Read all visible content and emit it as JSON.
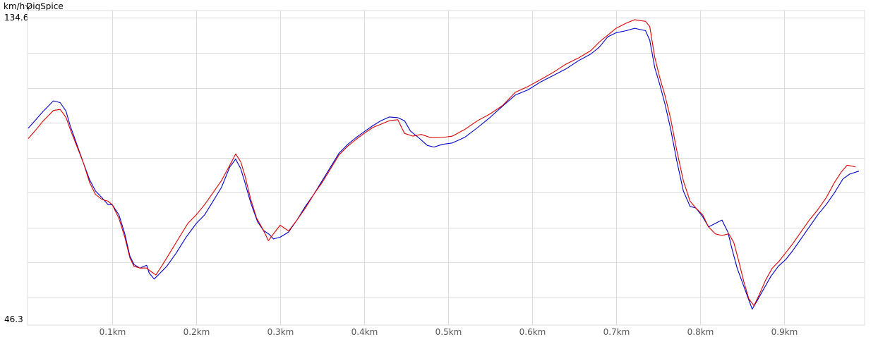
{
  "header": {
    "unit": "km/h",
    "brand": "DigSpice"
  },
  "chart_data": {
    "type": "line",
    "xlabel": "",
    "ylabel": "km/h",
    "xlim": [
      0,
      0.99
    ],
    "ylim": [
      46.3,
      134.6
    ],
    "y_ticks_labeled": [
      "134.6",
      "46.3"
    ],
    "x_ticks": [
      0.1,
      0.2,
      0.3,
      0.4,
      0.5,
      0.6,
      0.7,
      0.8,
      0.9
    ],
    "x_tick_labels": [
      "0.1km",
      "0.2km",
      "0.3km",
      "0.4km",
      "0.5km",
      "0.6km",
      "0.7km",
      "0.8km",
      "0.9km"
    ],
    "y_grid": [
      124.3,
      114.1,
      103.9,
      93.7,
      83.5,
      73.3,
      63.1,
      52.9
    ],
    "grid": true,
    "colors": {
      "series_blue": "#0000cc",
      "series_red": "#dd0000",
      "grid": "#dcdcdc",
      "tick_label": "#555555"
    },
    "series": [
      {
        "color": "#0000cc",
        "points": [
          [
            0.0,
            102.3
          ],
          [
            0.008,
            104.5
          ],
          [
            0.018,
            107.3
          ],
          [
            0.03,
            110.3
          ],
          [
            0.038,
            109.8
          ],
          [
            0.045,
            107.3
          ],
          [
            0.05,
            103.0
          ],
          [
            0.058,
            97.5
          ],
          [
            0.066,
            92.0
          ],
          [
            0.073,
            87.3
          ],
          [
            0.08,
            84.0
          ],
          [
            0.088,
            82.0
          ],
          [
            0.095,
            80.0
          ],
          [
            0.1,
            80.0
          ],
          [
            0.108,
            77.0
          ],
          [
            0.115,
            71.5
          ],
          [
            0.121,
            65.0
          ],
          [
            0.126,
            62.5
          ],
          [
            0.133,
            61.5
          ],
          [
            0.141,
            62.3
          ],
          [
            0.144,
            60.0
          ],
          [
            0.15,
            58.3
          ],
          [
            0.155,
            59.5
          ],
          [
            0.165,
            62.0
          ],
          [
            0.176,
            65.8
          ],
          [
            0.188,
            70.5
          ],
          [
            0.2,
            74.5
          ],
          [
            0.21,
            77.0
          ],
          [
            0.22,
            81.0
          ],
          [
            0.23,
            85.0
          ],
          [
            0.24,
            91.0
          ],
          [
            0.247,
            93.3
          ],
          [
            0.253,
            90.5
          ],
          [
            0.258,
            86.5
          ],
          [
            0.265,
            80.5
          ],
          [
            0.273,
            75.0
          ],
          [
            0.28,
            72.5
          ],
          [
            0.287,
            71.3
          ],
          [
            0.292,
            70.0
          ],
          [
            0.3,
            70.5
          ],
          [
            0.31,
            72.0
          ],
          [
            0.32,
            75.5
          ],
          [
            0.33,
            79.5
          ],
          [
            0.34,
            83.0
          ],
          [
            0.35,
            87.0
          ],
          [
            0.36,
            91.0
          ],
          [
            0.37,
            95.0
          ],
          [
            0.38,
            97.5
          ],
          [
            0.39,
            99.5
          ],
          [
            0.4,
            101.3
          ],
          [
            0.41,
            103.0
          ],
          [
            0.42,
            104.5
          ],
          [
            0.43,
            105.6
          ],
          [
            0.44,
            105.4
          ],
          [
            0.448,
            104.5
          ],
          [
            0.455,
            101.5
          ],
          [
            0.465,
            99.5
          ],
          [
            0.475,
            97.3
          ],
          [
            0.483,
            96.8
          ],
          [
            0.493,
            97.6
          ],
          [
            0.505,
            98.0
          ],
          [
            0.52,
            99.7
          ],
          [
            0.535,
            102.5
          ],
          [
            0.55,
            105.5
          ],
          [
            0.565,
            108.8
          ],
          [
            0.58,
            112.0
          ],
          [
            0.595,
            113.5
          ],
          [
            0.61,
            115.8
          ],
          [
            0.625,
            117.7
          ],
          [
            0.64,
            119.6
          ],
          [
            0.655,
            122.0
          ],
          [
            0.67,
            124.0
          ],
          [
            0.68,
            126.0
          ],
          [
            0.69,
            129.0
          ],
          [
            0.7,
            130.2
          ],
          [
            0.712,
            130.8
          ],
          [
            0.722,
            131.5
          ],
          [
            0.735,
            130.8
          ],
          [
            0.74,
            128.0
          ],
          [
            0.746,
            120.0
          ],
          [
            0.752,
            115.0
          ],
          [
            0.758,
            109.5
          ],
          [
            0.765,
            102.0
          ],
          [
            0.772,
            93.0
          ],
          [
            0.78,
            84.0
          ],
          [
            0.788,
            79.5
          ],
          [
            0.795,
            79.0
          ],
          [
            0.803,
            76.5
          ],
          [
            0.81,
            73.5
          ],
          [
            0.818,
            74.5
          ],
          [
            0.826,
            75.5
          ],
          [
            0.833,
            72.0
          ],
          [
            0.838,
            67.0
          ],
          [
            0.844,
            61.5
          ],
          [
            0.85,
            57.5
          ],
          [
            0.856,
            53.5
          ],
          [
            0.862,
            49.5
          ],
          [
            0.868,
            52.0
          ],
          [
            0.876,
            55.5
          ],
          [
            0.884,
            59.0
          ],
          [
            0.893,
            62.0
          ],
          [
            0.902,
            64.0
          ],
          [
            0.91,
            66.5
          ],
          [
            0.92,
            70.0
          ],
          [
            0.93,
            73.5
          ],
          [
            0.94,
            77.0
          ],
          [
            0.95,
            80.0
          ],
          [
            0.96,
            83.5
          ],
          [
            0.97,
            87.5
          ],
          [
            0.978,
            88.9
          ],
          [
            0.989,
            89.8
          ]
        ]
      },
      {
        "color": "#dd0000",
        "points": [
          [
            0.0,
            99.3
          ],
          [
            0.008,
            101.5
          ],
          [
            0.018,
            104.5
          ],
          [
            0.03,
            107.5
          ],
          [
            0.038,
            107.8
          ],
          [
            0.045,
            105.5
          ],
          [
            0.05,
            102.0
          ],
          [
            0.058,
            97.0
          ],
          [
            0.066,
            92.0
          ],
          [
            0.073,
            86.5
          ],
          [
            0.08,
            83.0
          ],
          [
            0.088,
            81.5
          ],
          [
            0.095,
            81.0
          ],
          [
            0.1,
            80.0
          ],
          [
            0.108,
            76.0
          ],
          [
            0.115,
            70.5
          ],
          [
            0.121,
            64.5
          ],
          [
            0.126,
            62.0
          ],
          [
            0.133,
            61.5
          ],
          [
            0.141,
            61.5
          ],
          [
            0.146,
            60.5
          ],
          [
            0.152,
            59.5
          ],
          [
            0.16,
            62.5
          ],
          [
            0.17,
            66.5
          ],
          [
            0.18,
            70.5
          ],
          [
            0.19,
            74.5
          ],
          [
            0.2,
            77.0
          ],
          [
            0.21,
            80.0
          ],
          [
            0.22,
            83.5
          ],
          [
            0.23,
            87.0
          ],
          [
            0.24,
            91.5
          ],
          [
            0.247,
            94.8
          ],
          [
            0.253,
            92.5
          ],
          [
            0.258,
            88.5
          ],
          [
            0.265,
            81.5
          ],
          [
            0.272,
            76.0
          ],
          [
            0.279,
            73.0
          ],
          [
            0.286,
            69.5
          ],
          [
            0.292,
            71.5
          ],
          [
            0.3,
            74.0
          ],
          [
            0.31,
            72.3
          ],
          [
            0.32,
            75.5
          ],
          [
            0.33,
            79.0
          ],
          [
            0.34,
            83.0
          ],
          [
            0.35,
            86.5
          ],
          [
            0.36,
            90.5
          ],
          [
            0.37,
            94.5
          ],
          [
            0.38,
            97.0
          ],
          [
            0.39,
            99.0
          ],
          [
            0.4,
            100.8
          ],
          [
            0.41,
            102.5
          ],
          [
            0.42,
            103.5
          ],
          [
            0.43,
            104.5
          ],
          [
            0.44,
            104.8
          ],
          [
            0.448,
            100.8
          ],
          [
            0.458,
            100.0
          ],
          [
            0.468,
            100.5
          ],
          [
            0.48,
            99.5
          ],
          [
            0.493,
            99.6
          ],
          [
            0.505,
            100.0
          ],
          [
            0.52,
            102.0
          ],
          [
            0.535,
            104.5
          ],
          [
            0.55,
            106.5
          ],
          [
            0.565,
            109.0
          ],
          [
            0.58,
            112.8
          ],
          [
            0.595,
            114.5
          ],
          [
            0.61,
            116.5
          ],
          [
            0.625,
            118.6
          ],
          [
            0.64,
            121.0
          ],
          [
            0.655,
            122.8
          ],
          [
            0.67,
            125.0
          ],
          [
            0.68,
            127.5
          ],
          [
            0.69,
            129.5
          ],
          [
            0.7,
            131.5
          ],
          [
            0.712,
            133.0
          ],
          [
            0.722,
            134.0
          ],
          [
            0.735,
            133.5
          ],
          [
            0.74,
            132.0
          ],
          [
            0.746,
            123.0
          ],
          [
            0.752,
            117.0
          ],
          [
            0.758,
            112.0
          ],
          [
            0.765,
            105.0
          ],
          [
            0.772,
            96.0
          ],
          [
            0.78,
            87.0
          ],
          [
            0.788,
            81.0
          ],
          [
            0.795,
            79.0
          ],
          [
            0.803,
            77.0
          ],
          [
            0.81,
            73.5
          ],
          [
            0.818,
            71.5
          ],
          [
            0.826,
            71.0
          ],
          [
            0.834,
            71.5
          ],
          [
            0.84,
            69.0
          ],
          [
            0.846,
            63.5
          ],
          [
            0.852,
            57.5
          ],
          [
            0.858,
            52.5
          ],
          [
            0.864,
            50.5
          ],
          [
            0.87,
            53.5
          ],
          [
            0.878,
            58.0
          ],
          [
            0.886,
            61.5
          ],
          [
            0.894,
            63.5
          ],
          [
            0.902,
            66.0
          ],
          [
            0.91,
            68.5
          ],
          [
            0.92,
            72.0
          ],
          [
            0.93,
            75.5
          ],
          [
            0.94,
            78.5
          ],
          [
            0.95,
            82.0
          ],
          [
            0.96,
            86.5
          ],
          [
            0.968,
            89.5
          ],
          [
            0.975,
            91.5
          ],
          [
            0.98,
            91.3
          ],
          [
            0.985,
            91.0
          ]
        ]
      }
    ]
  }
}
